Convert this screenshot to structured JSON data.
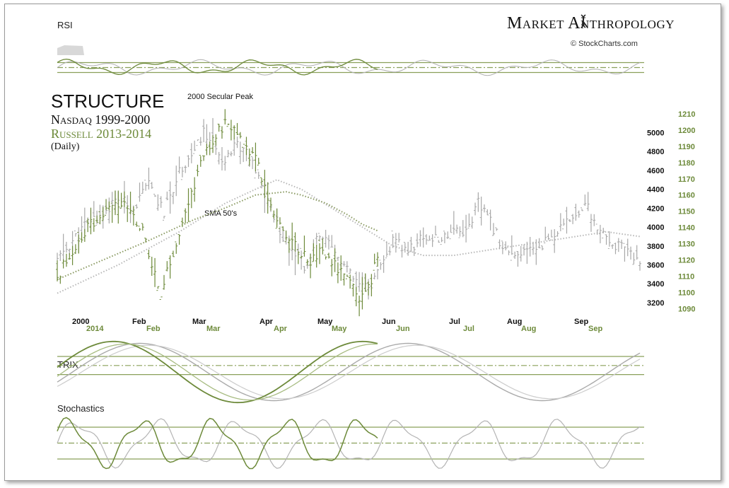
{
  "brand": {
    "title": "Market  Anthropology",
    "logo_icon": "dna-helix-icon",
    "source": "© StockCharts.com"
  },
  "title": {
    "main": "STRUCTURE",
    "line1": "Nasdaq 1999-2000",
    "line2": "Russell 2013-2014",
    "line3": "(Daily)"
  },
  "annotations": {
    "peak": "2000 Secular Peak",
    "sma": "SMA 50's"
  },
  "panels": {
    "rsi": "RSI",
    "trix": "TRIX",
    "stochastics": "Stochastics"
  },
  "colors": {
    "nasdaq": "#9a9a9a",
    "russell": "#6d8a3a",
    "grid": "#8aa05a"
  },
  "chart_data": {
    "type": "bar",
    "series": [
      {
        "name": "Nasdaq 1999-2000",
        "axis": "left",
        "ylim": [
          3050,
          5250
        ],
        "ticks": [
          3200,
          3400,
          3600,
          3800,
          4000,
          4200,
          4400,
          4600,
          4800,
          5000
        ]
      },
      {
        "name": "Russell 2013-2014",
        "axis": "right",
        "ylim": [
          1085,
          1213
        ],
        "ticks": [
          1090,
          1100,
          1110,
          1120,
          1130,
          1140,
          1150,
          1160,
          1170,
          1180,
          1190,
          1200,
          1210
        ]
      }
    ],
    "x_labels_primary": [
      "2000",
      "Feb",
      "Mar",
      "Apr",
      "May",
      "Jun",
      "Jul",
      "Aug",
      "Sep"
    ],
    "x_labels_secondary": [
      "2014",
      "Feb",
      "Mar",
      "Apr",
      "May",
      "Jun",
      "Jul",
      "Aug",
      "Sep"
    ],
    "nasdaq_keypoints": [
      [
        0,
        3650
      ],
      [
        5,
        3850
      ],
      [
        10,
        4050
      ],
      [
        15,
        4150
      ],
      [
        20,
        4300
      ],
      [
        25,
        4200
      ],
      [
        30,
        4450
      ],
      [
        35,
        4150
      ],
      [
        40,
        4600
      ],
      [
        45,
        4800
      ],
      [
        48,
        5000
      ],
      [
        52,
        4850
      ],
      [
        55,
        4700
      ],
      [
        58,
        4900
      ],
      [
        62,
        4800
      ],
      [
        66,
        4500
      ],
      [
        70,
        4200
      ],
      [
        74,
        3900
      ],
      [
        78,
        3750
      ],
      [
        82,
        3550
      ],
      [
        86,
        3950
      ],
      [
        90,
        3750
      ],
      [
        94,
        3600
      ],
      [
        98,
        3400
      ],
      [
        102,
        3350
      ],
      [
        106,
        3550
      ],
      [
        110,
        3850
      ],
      [
        115,
        3750
      ],
      [
        120,
        3900
      ],
      [
        125,
        3850
      ],
      [
        130,
        4000
      ],
      [
        134,
        3950
      ],
      [
        138,
        4250
      ],
      [
        142,
        4050
      ],
      [
        146,
        3800
      ],
      [
        150,
        3650
      ],
      [
        154,
        3750
      ],
      [
        158,
        3800
      ],
      [
        162,
        3900
      ],
      [
        166,
        4000
      ],
      [
        170,
        4150
      ],
      [
        173,
        4250
      ],
      [
        176,
        4050
      ],
      [
        180,
        3850
      ],
      [
        184,
        3800
      ],
      [
        188,
        3700
      ],
      [
        191,
        3650
      ]
    ],
    "nasdaq_sma_keypoints": [
      [
        0,
        3300
      ],
      [
        20,
        3600
      ],
      [
        40,
        3950
      ],
      [
        55,
        4250
      ],
      [
        65,
        4400
      ],
      [
        72,
        4500
      ],
      [
        80,
        4400
      ],
      [
        90,
        4200
      ],
      [
        100,
        4000
      ],
      [
        110,
        3800
      ],
      [
        120,
        3700
      ],
      [
        130,
        3700
      ],
      [
        140,
        3750
      ],
      [
        150,
        3800
      ],
      [
        160,
        3850
      ],
      [
        170,
        3900
      ],
      [
        180,
        3950
      ],
      [
        191,
        3900
      ]
    ],
    "russell_keypoints": [
      [
        0,
        1110
      ],
      [
        5,
        1125
      ],
      [
        10,
        1140
      ],
      [
        15,
        1148
      ],
      [
        20,
        1155
      ],
      [
        24,
        1150
      ],
      [
        28,
        1138
      ],
      [
        31,
        1115
      ],
      [
        34,
        1100
      ],
      [
        37,
        1118
      ],
      [
        40,
        1135
      ],
      [
        44,
        1160
      ],
      [
        47,
        1180
      ],
      [
        50,
        1190
      ],
      [
        53,
        1200
      ],
      [
        56,
        1205
      ],
      [
        59,
        1195
      ],
      [
        62,
        1190
      ],
      [
        65,
        1185
      ],
      [
        68,
        1165
      ],
      [
        71,
        1150
      ],
      [
        74,
        1140
      ],
      [
        77,
        1130
      ],
      [
        80,
        1125
      ],
      [
        83,
        1120
      ],
      [
        86,
        1125
      ],
      [
        89,
        1122
      ],
      [
        92,
        1115
      ],
      [
        95,
        1108
      ],
      [
        97,
        1102
      ],
      [
        99,
        1095
      ],
      [
        101,
        1100
      ],
      [
        103,
        1108
      ],
      [
        105,
        1122
      ]
    ],
    "russell_sma_keypoints": [
      [
        0,
        1108
      ],
      [
        15,
        1120
      ],
      [
        30,
        1132
      ],
      [
        45,
        1145
      ],
      [
        55,
        1152
      ],
      [
        65,
        1160
      ],
      [
        75,
        1162
      ],
      [
        80,
        1160
      ],
      [
        88,
        1155
      ],
      [
        95,
        1148
      ],
      [
        100,
        1142
      ],
      [
        105,
        1138
      ]
    ],
    "rsi": {
      "bands": [
        70,
        50,
        30
      ]
    },
    "stochastics": {
      "bands": [
        80,
        50,
        20
      ]
    }
  }
}
